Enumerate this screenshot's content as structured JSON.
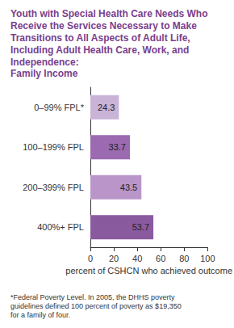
{
  "chart_data": {
    "type": "bar",
    "title": "Youth with Special Health Care Needs Who Receive the Services Necessary to Make Transitions to All Aspects of Adult Life, Including Adult Health Care, Work, and Independence:",
    "subtitle": "Family Income",
    "categories": [
      "0–99% FPL*",
      "100–199% FPL",
      "200–399% FPL",
      "400%+ FPL"
    ],
    "values": [
      24.3,
      33.7,
      43.5,
      53.7
    ],
    "colors": [
      "#c9b3d7",
      "#9b6ab0",
      "#b995c9",
      "#8a5a9f"
    ],
    "orientation": "horizontal",
    "xlabel": "percent of CSHCN who achieved outcome",
    "xlim": [
      0,
      100
    ],
    "xticks": [
      0,
      20,
      40,
      60,
      80,
      100
    ],
    "data_labels": true,
    "grid": false,
    "annotations": [
      "*Federal Poverty Level. In 2005, the DHHS poverty guidelines defined 100 percent of poverty as $19,350 for a family of four."
    ]
  }
}
